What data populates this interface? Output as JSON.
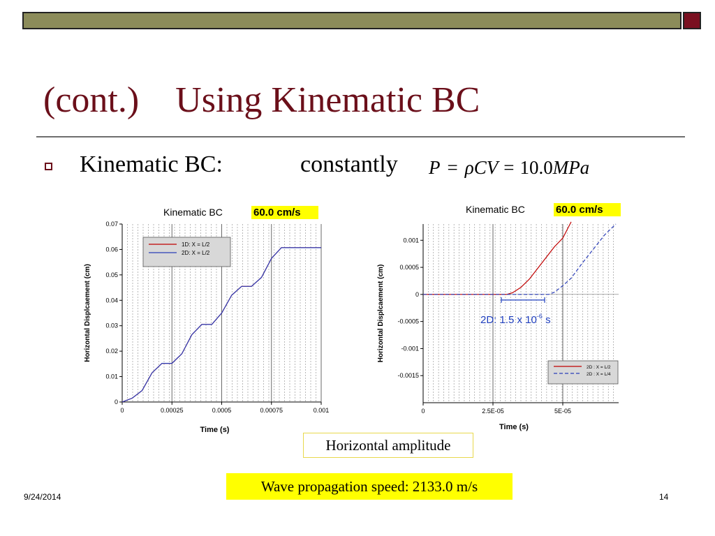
{
  "slide": {
    "title": "(cont.)    Using Kinematic BC",
    "bullet_label": "Kinematic BC:",
    "bullet_word": "constantly",
    "formula": {
      "lhs": "P",
      "eq": "=",
      "rho": "ρ",
      "cv": "CV",
      "eq2": "=",
      "value": "10.0",
      "unit": "MPa"
    },
    "caption_amplitude": "Horizontal amplitude",
    "caption_speed": "Wave propagation speed:  2133.0 m/s",
    "footer_date": "9/24/2014",
    "page_number": "14"
  },
  "colors": {
    "title": "#6b0f1a",
    "series_red": "#c00000",
    "series_blue": "#2a3db8",
    "annotation_blue": "#1f3fbf",
    "highlight": "#ffff00"
  },
  "chart_data": [
    {
      "type": "line",
      "title": "Kinematic BC",
      "title_highlight": "60.0 cm/s",
      "xlabel": "Time (s)",
      "ylabel": "Horizontal Displcaement (cm)",
      "xlim": [
        0,
        0.001
      ],
      "ylim": [
        0,
        0.07
      ],
      "xticks": [
        0,
        0.00025,
        0.0005,
        0.00075,
        0.001
      ],
      "xtick_labels": [
        "0",
        "0.00025",
        "0.0005",
        "0.00075",
        "0.001"
      ],
      "yticks": [
        0,
        0.01,
        0.02,
        0.03,
        0.04,
        0.05,
        0.06,
        0.07
      ],
      "ytick_labels": [
        "0",
        "0.01",
        "0.02",
        "0.03",
        "0.04",
        "0.05",
        "0.06",
        "0.07"
      ],
      "grid": "vertical dashed",
      "legend_position": "top-left",
      "series": [
        {
          "name": "1D: X = L/2",
          "color": "#c00000",
          "style": "solid",
          "x": [
            0,
            2e-05,
            5e-05,
            0.0001,
            0.00015,
            0.0002,
            0.00025,
            0.0003,
            0.00035,
            0.0004,
            0.00045,
            0.0005,
            0.00055,
            0.0006,
            0.00065,
            0.0007,
            0.00075,
            0.0008,
            0.00085,
            0.0009,
            0.00095,
            0.001
          ],
          "y": [
            0,
            0.0006,
            0.0015,
            0.0045,
            0.0115,
            0.0152,
            0.0152,
            0.019,
            0.0265,
            0.0305,
            0.0305,
            0.035,
            0.042,
            0.0455,
            0.0455,
            0.049,
            0.0565,
            0.0607,
            0.0607,
            0.0607,
            0.0607,
            0.0607
          ]
        },
        {
          "name": "2D: X = L/2",
          "color": "#2a3db8",
          "style": "solid",
          "x": [
            0,
            2e-05,
            5e-05,
            0.0001,
            0.00015,
            0.0002,
            0.00025,
            0.0003,
            0.00035,
            0.0004,
            0.00045,
            0.0005,
            0.00055,
            0.0006,
            0.00065,
            0.0007,
            0.00075,
            0.0008,
            0.00085,
            0.0009,
            0.00095,
            0.001
          ],
          "y": [
            0,
            0.0006,
            0.0015,
            0.0045,
            0.0115,
            0.0152,
            0.0152,
            0.019,
            0.0265,
            0.0305,
            0.0305,
            0.035,
            0.042,
            0.0455,
            0.0455,
            0.049,
            0.0565,
            0.0607,
            0.0607,
            0.0607,
            0.0607,
            0.0607
          ]
        }
      ]
    },
    {
      "type": "line",
      "title": "Kinematic BC",
      "title_highlight": "60.0 cm/s",
      "xlabel": "Time (s)",
      "ylabel": "Horizontal Displcaement (cm)",
      "xlim": [
        0,
        7e-05
      ],
      "ylim": [
        -0.002,
        0.0013
      ],
      "xticks": [
        0,
        2.5e-05,
        5e-05
      ],
      "xtick_labels": [
        "0",
        "2.5E-05",
        "5E-05"
      ],
      "yticks": [
        -0.0015,
        -0.001,
        -0.0005,
        0,
        0.0005,
        0.001
      ],
      "ytick_labels": [
        "-0.0015",
        "-0.001",
        "-0.0005",
        "0",
        "0.0005",
        "0.001"
      ],
      "grid": "vertical dashed",
      "legend_position": "bottom-right",
      "annotation": {
        "prefix": "2D: 1.5 x 10",
        "exponent": "-6",
        "suffix": " s",
        "bracket_x": [
          2.8e-05,
          4.35e-05
        ]
      },
      "series": [
        {
          "name": "2D : X = L/2",
          "color": "#c00000",
          "style": "solid",
          "x": [
            0,
            3e-05,
            3.2e-05,
            3.5e-05,
            3.8e-05,
            4.1e-05,
            4.4e-05,
            4.7e-05,
            5e-05,
            5.3e-05
          ],
          "y": [
            0,
            0,
            3e-05,
            0.00013,
            0.00028,
            0.00048,
            0.00068,
            0.00088,
            0.00104,
            0.00134
          ]
        },
        {
          "name": "2D : X = L/4",
          "color": "#2a3db8",
          "style": "dashed",
          "x": [
            0,
            4.5e-05,
            4.7e-05,
            5e-05,
            5.3e-05,
            5.7e-05,
            6.1e-05,
            6.5e-05,
            6.9e-05
          ],
          "y": [
            0,
            0,
            4e-05,
            0.00016,
            0.0003,
            0.00058,
            0.00084,
            0.0011,
            0.0013
          ]
        }
      ]
    }
  ]
}
